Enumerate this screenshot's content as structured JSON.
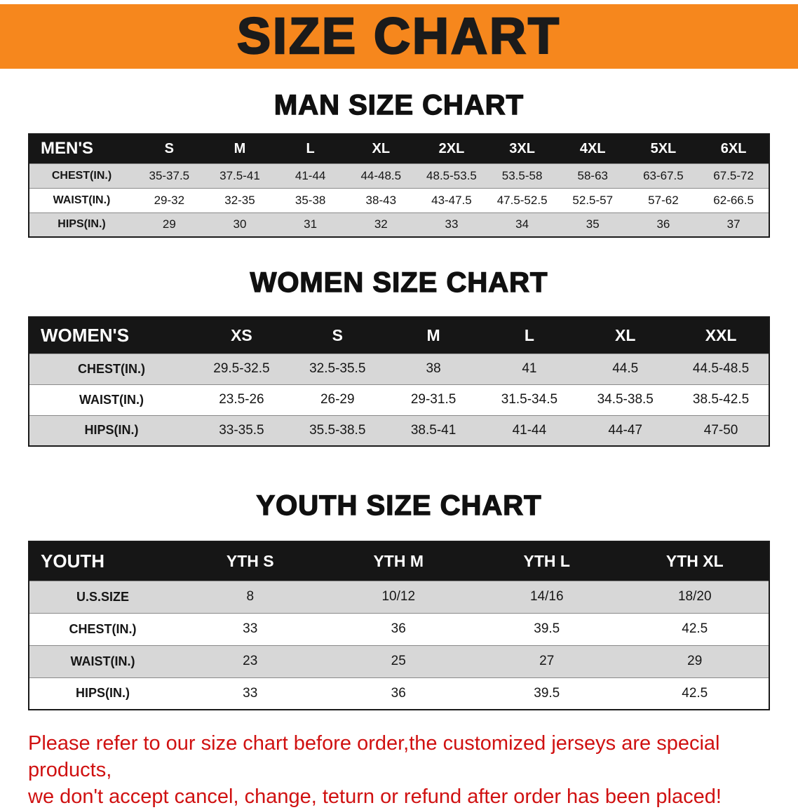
{
  "banner": {
    "title": "SIZE CHART"
  },
  "chart_data": [
    {
      "type": "table",
      "title": "MAN SIZE CHART",
      "corner_label": "MEN'S",
      "columns": [
        "S",
        "M",
        "L",
        "XL",
        "2XL",
        "3XL",
        "4XL",
        "5XL",
        "6XL"
      ],
      "rows": [
        {
          "label": "CHEST(IN.)",
          "values": [
            "35-37.5",
            "37.5-41",
            "41-44",
            "44-48.5",
            "48.5-53.5",
            "53.5-58",
            "58-63",
            "63-67.5",
            "67.5-72"
          ]
        },
        {
          "label": "WAIST(IN.)",
          "values": [
            "29-32",
            "32-35",
            "35-38",
            "38-43",
            "43-47.5",
            "47.5-52.5",
            "52.5-57",
            "57-62",
            "62-66.5"
          ]
        },
        {
          "label": "HIPS(IN.)",
          "values": [
            "29",
            "30",
            "31",
            "32",
            "33",
            "34",
            "35",
            "36",
            "37"
          ]
        }
      ]
    },
    {
      "type": "table",
      "title": "WOMEN SIZE CHART",
      "corner_label": "WOMEN'S",
      "columns": [
        "XS",
        "S",
        "M",
        "L",
        "XL",
        "XXL"
      ],
      "rows": [
        {
          "label": "CHEST(IN.)",
          "values": [
            "29.5-32.5",
            "32.5-35.5",
            "38",
            "41",
            "44.5",
            "44.5-48.5"
          ]
        },
        {
          "label": "WAIST(IN.)",
          "values": [
            "23.5-26",
            "26-29",
            "29-31.5",
            "31.5-34.5",
            "34.5-38.5",
            "38.5-42.5"
          ]
        },
        {
          "label": "HIPS(IN.)",
          "values": [
            "33-35.5",
            "35.5-38.5",
            "38.5-41",
            "41-44",
            "44-47",
            "47-50"
          ]
        }
      ]
    },
    {
      "type": "table",
      "title": "YOUTH SIZE CHART",
      "corner_label": "YOUTH",
      "columns": [
        "YTH S",
        "YTH M",
        "YTH L",
        "YTH XL"
      ],
      "rows": [
        {
          "label": "U.S.SIZE",
          "values": [
            "8",
            "10/12",
            "14/16",
            "18/20"
          ]
        },
        {
          "label": "CHEST(IN.)",
          "values": [
            "33",
            "36",
            "39.5",
            "42.5"
          ]
        },
        {
          "label": "WAIST(IN.)",
          "values": [
            "23",
            "25",
            "27",
            "29"
          ]
        },
        {
          "label": "HIPS(IN.)",
          "values": [
            "33",
            "36",
            "39.5",
            "42.5"
          ]
        }
      ]
    }
  ],
  "disclaimer": {
    "line1": "Please refer to our size chart before order,the customized jerseys are special products,",
    "line2": "we don't accept cancel, change, teturn or refund after order has been placed!"
  },
  "colors": {
    "banner_bg": "#f6871d",
    "table_header_bg": "#161616",
    "row_shaded_bg": "#d7d7d7",
    "disclaimer_text": "#d01111"
  }
}
